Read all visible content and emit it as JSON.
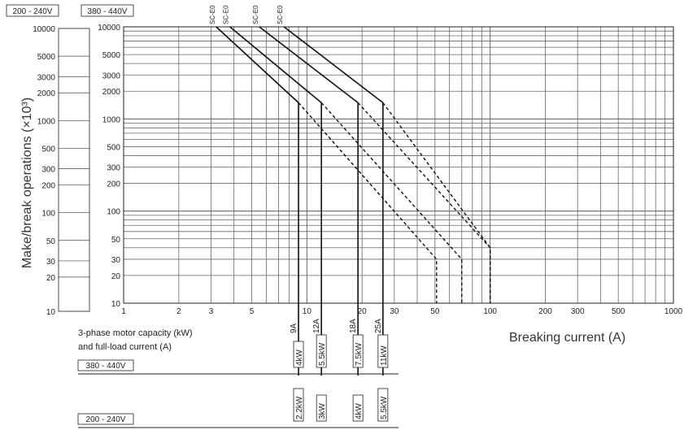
{
  "chart_data": {
    "type": "line",
    "ylabel": "Make/break operations (×10³)",
    "xlabel": "Breaking current (A)",
    "xscale": "log",
    "yscale": "log",
    "xlim": [
      1,
      1000
    ],
    "ylim": [
      10,
      10000
    ],
    "x_ticks": [
      1,
      2,
      3,
      5,
      10,
      20,
      30,
      50,
      100,
      200,
      300,
      500,
      1000
    ],
    "y_ticks": [
      10,
      20,
      30,
      50,
      100,
      200,
      300,
      500,
      1000,
      2000,
      3000,
      5000,
      10000
    ],
    "voltage_scales": [
      {
        "label": "200 - 240V",
        "ticks": [
          10,
          20,
          30,
          50,
          100,
          200,
          300,
          500,
          1000,
          2000,
          3000,
          5000,
          10000
        ]
      },
      {
        "label": "380 - 440V",
        "ticks": [
          10,
          20,
          30,
          50,
          100,
          200,
          300,
          500,
          1000,
          2000,
          3000,
          5000,
          10000
        ]
      }
    ],
    "series": [
      {
        "name": "SC-E0",
        "rated_current": 9,
        "points": [
          [
            3.2,
            10000
          ],
          [
            9,
            1500
          ]
        ],
        "dashed": [
          [
            9,
            1500
          ],
          [
            51,
            30
          ],
          [
            51,
            10
          ]
        ]
      },
      {
        "name": "SC-E0",
        "rated_current": 12,
        "points": [
          [
            3.8,
            10000
          ],
          [
            12,
            1500
          ]
        ],
        "dashed": [
          [
            12,
            1500
          ],
          [
            70,
            30
          ],
          [
            70,
            10
          ]
        ]
      },
      {
        "name": "SC-E0",
        "rated_current": 18,
        "points": [
          [
            5.5,
            10000
          ],
          [
            19,
            1500
          ]
        ],
        "dashed": [
          [
            19,
            1500
          ],
          [
            100,
            40
          ],
          [
            100,
            10
          ]
        ]
      },
      {
        "name": "SC-E0",
        "rated_current": 25,
        "points": [
          [
            7.5,
            10000
          ],
          [
            26,
            1500
          ]
        ],
        "dashed": [
          [
            26,
            1500
          ],
          [
            100,
            40
          ],
          [
            100,
            10
          ]
        ]
      }
    ],
    "motor_labels": {
      "caption_line1": "3-phase motor capacity (kW)",
      "caption_line2": "and full-load current (A)",
      "currents": [
        {
          "x": 9,
          "label": "9A"
        },
        {
          "x": 12,
          "label": "12A"
        },
        {
          "x": 19,
          "label": "18A"
        },
        {
          "x": 26,
          "label": "25A"
        }
      ],
      "rows": [
        {
          "voltage": "380 - 440V",
          "kw": [
            "4kW",
            "5.5kW",
            "7.5kW",
            "11kW"
          ]
        },
        {
          "voltage": "200 - 240V",
          "kw": [
            "2.2kW",
            "3kW",
            "4kW",
            "5.5kW"
          ]
        }
      ]
    }
  }
}
